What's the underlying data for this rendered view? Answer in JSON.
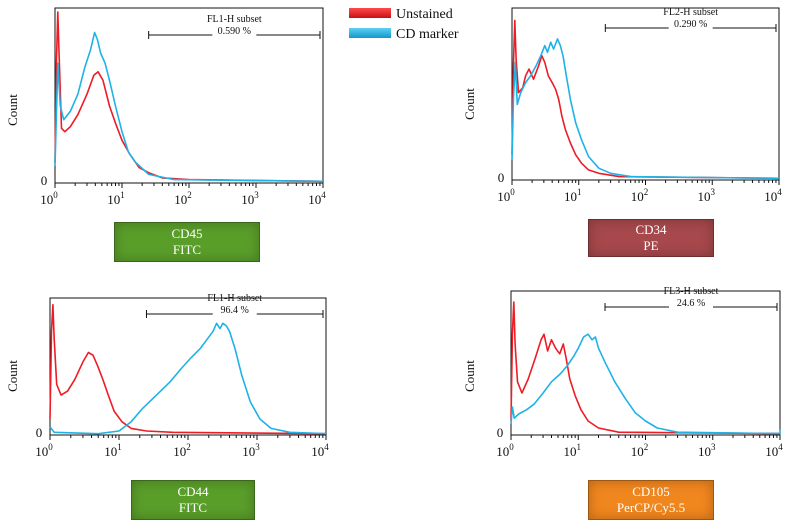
{
  "legend": [
    {
      "label": "Unstained",
      "color": "#ee1c25"
    },
    {
      "label": "CD marker",
      "color": "#1fb2e6"
    }
  ],
  "panels": [
    {
      "marker": {
        "name": "CD45",
        "fluor": "FITC",
        "color": "#5a9e2a"
      },
      "gate": {
        "label": "FL1-H subset",
        "value": "0.590 %"
      }
    },
    {
      "marker": {
        "name": "CD34",
        "fluor": "PE",
        "color": "#a6484c"
      },
      "gate": {
        "label": "FL2-H subset",
        "value": "0.290 %"
      }
    },
    {
      "marker": {
        "name": "CD44",
        "fluor": "FITC",
        "color": "#5a9e2a"
      },
      "gate": {
        "label": "FL1-H subset",
        "value": "96.4 %"
      }
    },
    {
      "marker": {
        "name": "CD105",
        "fluor": "PerCP/Cy5.5",
        "color": "#f0861e"
      },
      "gate": {
        "label": "FL3-H subset",
        "value": "24.6 %"
      }
    }
  ],
  "chart_data": [
    {
      "type": "line",
      "xlabel": "",
      "ylabel": "Count",
      "x_scale": "log",
      "xlim": [
        1,
        10000
      ],
      "ylim": [
        0,
        100
      ],
      "x_ticks": [
        "10^0",
        "10^1",
        "10^2",
        "10^3",
        "10^4"
      ],
      "y_ticks": [
        "0"
      ],
      "gate_range": [
        25,
        10000
      ],
      "series": [
        {
          "name": "Unstained",
          "color": "#ee1c25",
          "points": [
            [
              1,
              12
            ],
            [
              1.05,
              70
            ],
            [
              1.1,
              100
            ],
            [
              1.15,
              75
            ],
            [
              1.25,
              32
            ],
            [
              1.4,
              30
            ],
            [
              1.7,
              33
            ],
            [
              2.2,
              40
            ],
            [
              3,
              52
            ],
            [
              3.8,
              63
            ],
            [
              4.4,
              65
            ],
            [
              5.2,
              60
            ],
            [
              6.5,
              45
            ],
            [
              8,
              35
            ],
            [
              10,
              25
            ],
            [
              13,
              17
            ],
            [
              18,
              9
            ],
            [
              25,
              6
            ],
            [
              40,
              3
            ],
            [
              100,
              2
            ],
            [
              10000,
              1
            ]
          ]
        },
        {
          "name": "CD marker",
          "color": "#1fb2e6",
          "points": [
            [
              1,
              10
            ],
            [
              1.05,
              40
            ],
            [
              1.1,
              70
            ],
            [
              1.2,
              45
            ],
            [
              1.35,
              37
            ],
            [
              1.7,
              42
            ],
            [
              2.2,
              52
            ],
            [
              2.8,
              68
            ],
            [
              3.4,
              78
            ],
            [
              3.9,
              88
            ],
            [
              4.3,
              84
            ],
            [
              4.8,
              76
            ],
            [
              5.6,
              70
            ],
            [
              6.5,
              60
            ],
            [
              8,
              45
            ],
            [
              10,
              30
            ],
            [
              12.5,
              18
            ],
            [
              16,
              12
            ],
            [
              25,
              5
            ],
            [
              60,
              2
            ],
            [
              10000,
              1
            ]
          ]
        }
      ]
    },
    {
      "type": "line",
      "xlabel": "",
      "ylabel": "Count",
      "x_scale": "log",
      "xlim": [
        1,
        10000
      ],
      "ylim": [
        0,
        100
      ],
      "x_ticks": [
        "10^0",
        "10^1",
        "10^2",
        "10^3",
        "10^4"
      ],
      "y_ticks": [
        "0"
      ],
      "gate_range": [
        25,
        10000
      ],
      "series": [
        {
          "name": "Unstained",
          "color": "#ee1c25",
          "points": [
            [
              1,
              15
            ],
            [
              1.05,
              68
            ],
            [
              1.1,
              95
            ],
            [
              1.15,
              72
            ],
            [
              1.25,
              52
            ],
            [
              1.45,
              55
            ],
            [
              1.6,
              62
            ],
            [
              1.8,
              66
            ],
            [
              2.1,
              60
            ],
            [
              2.5,
              68
            ],
            [
              2.8,
              74
            ],
            [
              3.1,
              70
            ],
            [
              3.5,
              62
            ],
            [
              4,
              58
            ],
            [
              4.5,
              54
            ],
            [
              5,
              48
            ],
            [
              5.6,
              38
            ],
            [
              6.3,
              30
            ],
            [
              7.5,
              22
            ],
            [
              9,
              15
            ],
            [
              11,
              10
            ],
            [
              14,
              6
            ],
            [
              20,
              4
            ],
            [
              40,
              2
            ],
            [
              10000,
              1
            ]
          ]
        },
        {
          "name": "CD marker",
          "color": "#1fb2e6",
          "points": [
            [
              1,
              12
            ],
            [
              1.05,
              48
            ],
            [
              1.12,
              70
            ],
            [
              1.2,
              45
            ],
            [
              1.35,
              52
            ],
            [
              1.6,
              58
            ],
            [
              1.9,
              62
            ],
            [
              2.3,
              68
            ],
            [
              2.7,
              74
            ],
            [
              3.1,
              80
            ],
            [
              3.4,
              76
            ],
            [
              3.8,
              82
            ],
            [
              4.2,
              78
            ],
            [
              4.8,
              84
            ],
            [
              5.3,
              80
            ],
            [
              5.8,
              74
            ],
            [
              6.5,
              62
            ],
            [
              7.5,
              48
            ],
            [
              9,
              34
            ],
            [
              11,
              24
            ],
            [
              14,
              14
            ],
            [
              20,
              7
            ],
            [
              30,
              4
            ],
            [
              60,
              2
            ],
            [
              10000,
              1
            ]
          ]
        }
      ]
    },
    {
      "type": "line",
      "xlabel": "",
      "ylabel": "Count",
      "x_scale": "log",
      "xlim": [
        1,
        10000
      ],
      "ylim": [
        0,
        100
      ],
      "x_ticks": [
        "10^0",
        "10^1",
        "10^2",
        "10^3",
        "10^4"
      ],
      "y_ticks": [
        "0"
      ],
      "gate_range": [
        25,
        10000
      ],
      "series": [
        {
          "name": "Unstained",
          "color": "#ee1c25",
          "points": [
            [
              1,
              12
            ],
            [
              1.05,
              78
            ],
            [
              1.1,
              98
            ],
            [
              1.15,
              72
            ],
            [
              1.25,
              38
            ],
            [
              1.45,
              30
            ],
            [
              1.8,
              33
            ],
            [
              2.3,
              42
            ],
            [
              3,
              55
            ],
            [
              3.6,
              62
            ],
            [
              4.2,
              60
            ],
            [
              4.9,
              52
            ],
            [
              5.8,
              42
            ],
            [
              7,
              30
            ],
            [
              8.5,
              18
            ],
            [
              11,
              10
            ],
            [
              15,
              5
            ],
            [
              25,
              3
            ],
            [
              60,
              2
            ],
            [
              10000,
              1
            ]
          ]
        },
        {
          "name": "CD marker",
          "color": "#1fb2e6",
          "points": [
            [
              1,
              6
            ],
            [
              1.15,
              2
            ],
            [
              5,
              1
            ],
            [
              10,
              3
            ],
            [
              15,
              10
            ],
            [
              22,
              20
            ],
            [
              35,
              30
            ],
            [
              55,
              40
            ],
            [
              80,
              50
            ],
            [
              110,
              58
            ],
            [
              150,
              65
            ],
            [
              190,
              72
            ],
            [
              230,
              78
            ],
            [
              260,
              84
            ],
            [
              290,
              80
            ],
            [
              320,
              84
            ],
            [
              360,
              82
            ],
            [
              400,
              78
            ],
            [
              480,
              65
            ],
            [
              600,
              45
            ],
            [
              800,
              25
            ],
            [
              1100,
              12
            ],
            [
              1600,
              5
            ],
            [
              3000,
              2
            ],
            [
              10000,
              1
            ]
          ]
        }
      ]
    },
    {
      "type": "line",
      "xlabel": "",
      "ylabel": "Count",
      "x_scale": "log",
      "xlim": [
        1,
        10000
      ],
      "ylim": [
        0,
        100
      ],
      "x_ticks": [
        "10^0",
        "10^1",
        "10^2",
        "10^3",
        "10^4"
      ],
      "y_ticks": [
        "0"
      ],
      "gate_range": [
        25,
        10000
      ],
      "series": [
        {
          "name": "Unstained",
          "color": "#ee1c25",
          "points": [
            [
              1,
              10
            ],
            [
              1.05,
              72
            ],
            [
              1.1,
              95
            ],
            [
              1.15,
              65
            ],
            [
              1.25,
              38
            ],
            [
              1.45,
              30
            ],
            [
              1.8,
              40
            ],
            [
              2.3,
              55
            ],
            [
              2.8,
              68
            ],
            [
              3.1,
              72
            ],
            [
              3.5,
              60
            ],
            [
              4,
              68
            ],
            [
              4.6,
              62
            ],
            [
              5.3,
              58
            ],
            [
              6,
              65
            ],
            [
              6.6,
              55
            ],
            [
              7.5,
              40
            ],
            [
              9,
              28
            ],
            [
              11,
              18
            ],
            [
              14,
              10
            ],
            [
              20,
              5
            ],
            [
              40,
              2
            ],
            [
              10000,
              1
            ]
          ]
        },
        {
          "name": "CD marker",
          "color": "#1fb2e6",
          "points": [
            [
              1,
              8
            ],
            [
              1.05,
              20
            ],
            [
              1.12,
              12
            ],
            [
              1.3,
              15
            ],
            [
              1.7,
              18
            ],
            [
              2.2,
              22
            ],
            [
              3,
              30
            ],
            [
              4,
              38
            ],
            [
              5.5,
              44
            ],
            [
              7,
              50
            ],
            [
              8.5,
              56
            ],
            [
              10,
              62
            ],
            [
              12,
              70
            ],
            [
              14,
              72
            ],
            [
              16,
              68
            ],
            [
              18,
              70
            ],
            [
              20,
              62
            ],
            [
              25,
              52
            ],
            [
              35,
              38
            ],
            [
              50,
              26
            ],
            [
              70,
              16
            ],
            [
              100,
              10
            ],
            [
              150,
              5
            ],
            [
              300,
              2
            ],
            [
              10000,
              1
            ],
            [
              10000,
              4
            ]
          ]
        }
      ]
    }
  ]
}
